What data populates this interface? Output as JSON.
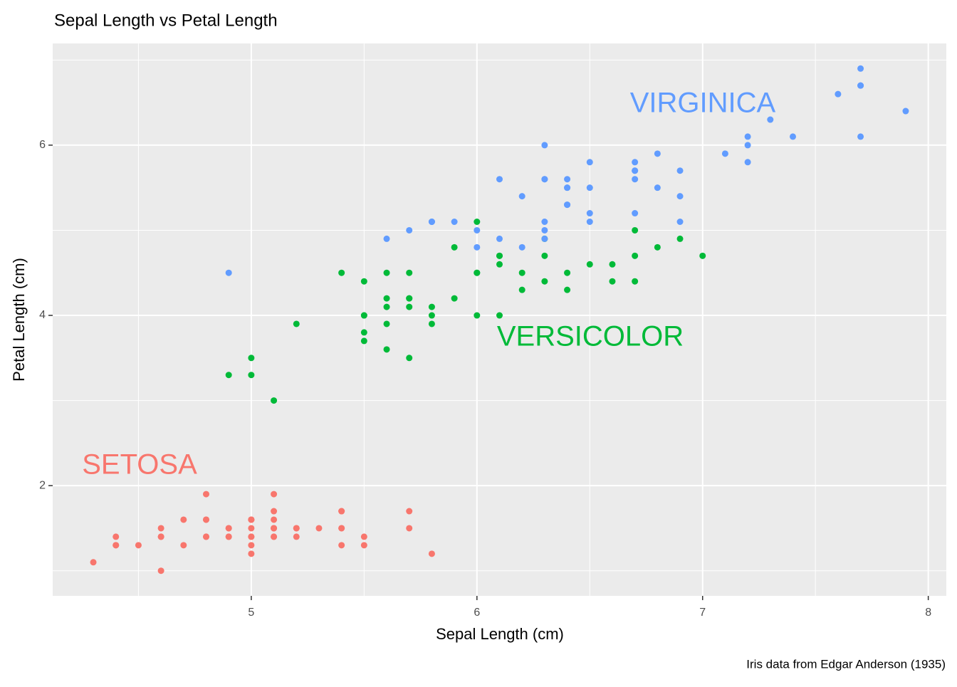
{
  "chart_data": {
    "type": "scatter",
    "title": "Sepal Length vs Petal Length",
    "x_label": "Sepal Length (cm)",
    "y_label": "Petal Length (cm)",
    "caption": "Iris data from Edgar Anderson (1935)",
    "xlim": [
      4.12,
      8.08
    ],
    "ylim": [
      0.705,
      7.195
    ],
    "xticks": [
      5,
      6,
      7,
      8
    ],
    "yticks": [
      2,
      4,
      6
    ],
    "grid": true,
    "series": [
      {
        "name": "SETOSA",
        "color": "#F8766D",
        "x": [
          5.1,
          4.9,
          4.7,
          4.6,
          5.0,
          5.4,
          4.6,
          5.0,
          4.4,
          4.9,
          5.4,
          4.8,
          4.8,
          4.3,
          5.8,
          5.7,
          5.4,
          5.1,
          5.7,
          5.1,
          5.4,
          5.1,
          4.6,
          5.1,
          4.8,
          5.0,
          5.0,
          5.2,
          5.2,
          4.7,
          4.8,
          5.4,
          5.2,
          5.5,
          4.9,
          5.0,
          5.5,
          4.9,
          4.4,
          5.1,
          5.0,
          4.5,
          4.4,
          5.0,
          5.1,
          4.8,
          5.1,
          4.6,
          5.3,
          5.0
        ],
        "values": [
          1.4,
          1.4,
          1.3,
          1.5,
          1.4,
          1.7,
          1.4,
          1.5,
          1.4,
          1.5,
          1.5,
          1.6,
          1.4,
          1.1,
          1.2,
          1.5,
          1.3,
          1.4,
          1.7,
          1.5,
          1.7,
          1.5,
          1.0,
          1.7,
          1.9,
          1.6,
          1.6,
          1.5,
          1.4,
          1.6,
          1.6,
          1.5,
          1.5,
          1.4,
          1.5,
          1.2,
          1.3,
          1.4,
          1.3,
          1.5,
          1.3,
          1.3,
          1.3,
          1.6,
          1.9,
          1.4,
          1.6,
          1.4,
          1.5,
          1.4
        ]
      },
      {
        "name": "VERSICOLOR",
        "color": "#00BA38",
        "x": [
          7.0,
          6.4,
          6.9,
          5.5,
          6.5,
          5.7,
          6.3,
          4.9,
          6.6,
          5.2,
          5.0,
          5.9,
          6.0,
          6.1,
          5.6,
          6.7,
          5.6,
          5.8,
          6.2,
          5.6,
          5.9,
          6.1,
          6.3,
          6.1,
          6.4,
          6.6,
          6.8,
          6.7,
          6.0,
          5.7,
          5.5,
          5.5,
          5.8,
          6.0,
          5.4,
          6.0,
          6.7,
          6.3,
          5.6,
          5.5,
          5.5,
          6.1,
          5.8,
          5.0,
          5.6,
          5.7,
          5.7,
          6.2,
          5.1,
          5.7
        ],
        "values": [
          4.7,
          4.5,
          4.9,
          4.0,
          4.6,
          4.5,
          4.7,
          3.3,
          4.6,
          3.9,
          3.5,
          4.2,
          4.0,
          4.7,
          3.6,
          4.4,
          4.5,
          4.1,
          4.5,
          3.9,
          4.8,
          4.0,
          4.9,
          4.7,
          4.3,
          4.4,
          4.8,
          5.0,
          4.5,
          3.5,
          3.8,
          3.7,
          3.9,
          5.1,
          4.5,
          4.5,
          4.7,
          4.4,
          4.1,
          4.0,
          4.4,
          4.6,
          4.0,
          3.3,
          4.2,
          4.2,
          4.2,
          4.3,
          3.0,
          4.1
        ]
      },
      {
        "name": "VIRGINICA",
        "color": "#619CFF",
        "x": [
          6.3,
          5.8,
          7.1,
          6.3,
          6.5,
          7.6,
          4.9,
          7.3,
          6.7,
          7.2,
          6.5,
          6.4,
          6.8,
          5.7,
          5.8,
          6.4,
          6.5,
          7.7,
          7.7,
          6.0,
          6.9,
          5.6,
          7.7,
          6.3,
          6.7,
          7.2,
          6.2,
          6.1,
          6.4,
          7.2,
          7.4,
          7.9,
          6.4,
          6.3,
          6.1,
          7.7,
          6.3,
          6.4,
          6.0,
          6.9,
          6.7,
          6.9,
          5.8,
          6.8,
          6.7,
          6.7,
          6.3,
          6.5,
          6.2,
          5.9
        ],
        "values": [
          6.0,
          5.1,
          5.9,
          5.6,
          5.8,
          6.6,
          4.5,
          6.3,
          5.8,
          6.1,
          5.1,
          5.3,
          5.5,
          5.0,
          5.1,
          5.3,
          5.5,
          6.7,
          6.9,
          5.0,
          5.7,
          4.9,
          6.7,
          4.9,
          5.7,
          6.0,
          4.8,
          4.9,
          5.6,
          5.8,
          6.1,
          6.4,
          5.5,
          5.1,
          5.6,
          6.1,
          5.6,
          5.5,
          4.8,
          5.4,
          5.6,
          5.1,
          5.1,
          5.9,
          5.7,
          5.2,
          5.0,
          5.2,
          5.4,
          5.1
        ]
      }
    ]
  }
}
